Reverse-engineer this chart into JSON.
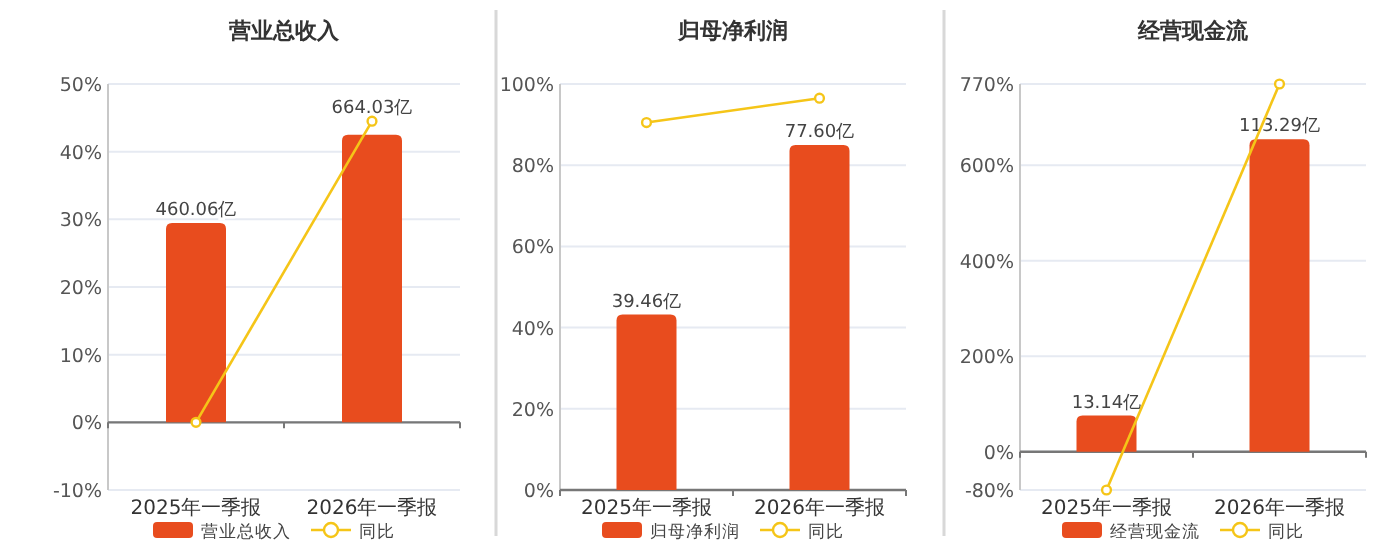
{
  "chart_data": [
    {
      "type": "bar",
      "title": "营业总收入",
      "categories": [
        "2025年一季报",
        "2026年一季报"
      ],
      "ylim": [
        -10,
        50
      ],
      "yticks": [
        {
          "value": -10,
          "label": "-10%"
        },
        {
          "value": 0,
          "label": "0%"
        },
        {
          "value": 10,
          "label": "10%"
        },
        {
          "value": 20,
          "label": "20%"
        },
        {
          "value": 30,
          "label": "30%"
        },
        {
          "value": 40,
          "label": "40%"
        },
        {
          "value": 50,
          "label": "50%"
        }
      ],
      "y2lim": [
        -156.2,
        781.2
      ],
      "grid": "y",
      "legend": "bottom",
      "series": [
        {
          "name": "营业总收入",
          "axis": "y2",
          "color": "#e84c1e",
          "values": [
            460.06,
            664.03
          ],
          "value_labels": [
            "460.06亿",
            "664.03亿"
          ]
        },
        {
          "name": "同比",
          "type": "line",
          "color": "#f5c518",
          "marker": "circle",
          "values": [
            0,
            44.5
          ]
        }
      ]
    },
    {
      "type": "bar",
      "title": "归母净利润",
      "categories": [
        "2025年一季报",
        "2026年一季报"
      ],
      "ylim": [
        0,
        100
      ],
      "yticks": [
        {
          "value": 0,
          "label": "0%"
        },
        {
          "value": 20,
          "label": "20%"
        },
        {
          "value": 40,
          "label": "40%"
        },
        {
          "value": 60,
          "label": "60%"
        },
        {
          "value": 80,
          "label": "80%"
        },
        {
          "value": 100,
          "label": "100%"
        }
      ],
      "y2lim": [
        0,
        91.3
      ],
      "grid": "y",
      "legend": "bottom",
      "series": [
        {
          "name": "归母净利润",
          "axis": "y2",
          "color": "#e84c1e",
          "values": [
            39.46,
            77.6
          ],
          "value_labels": [
            "39.46亿",
            "77.60亿"
          ]
        },
        {
          "name": "同比",
          "type": "line",
          "color": "#f5c518",
          "marker": "circle",
          "values": [
            90.5,
            96.5
          ]
        }
      ]
    },
    {
      "type": "bar",
      "title": "经营现金流",
      "categories": [
        "2025年一季报",
        "2026年一季报"
      ],
      "ylim": [
        -80,
        770
      ],
      "yticks": [
        {
          "value": -80,
          "label": "-80%"
        },
        {
          "value": 0,
          "label": "0%"
        },
        {
          "value": 200,
          "label": "200%"
        },
        {
          "value": 400,
          "label": "400%"
        },
        {
          "value": 600,
          "label": "600%"
        },
        {
          "value": 770,
          "label": "770%"
        }
      ],
      "y2lim": [
        -13.85,
        133.3
      ],
      "grid": "y",
      "legend": "bottom",
      "series": [
        {
          "name": "经营现金流",
          "axis": "y2",
          "color": "#e84c1e",
          "values": [
            13.14,
            113.29
          ],
          "value_labels": [
            "13.14亿",
            "113.29亿"
          ]
        },
        {
          "name": "同比",
          "type": "line",
          "color": "#f5c518",
          "marker": "circle",
          "values": [
            -80,
            770
          ]
        }
      ]
    }
  ]
}
